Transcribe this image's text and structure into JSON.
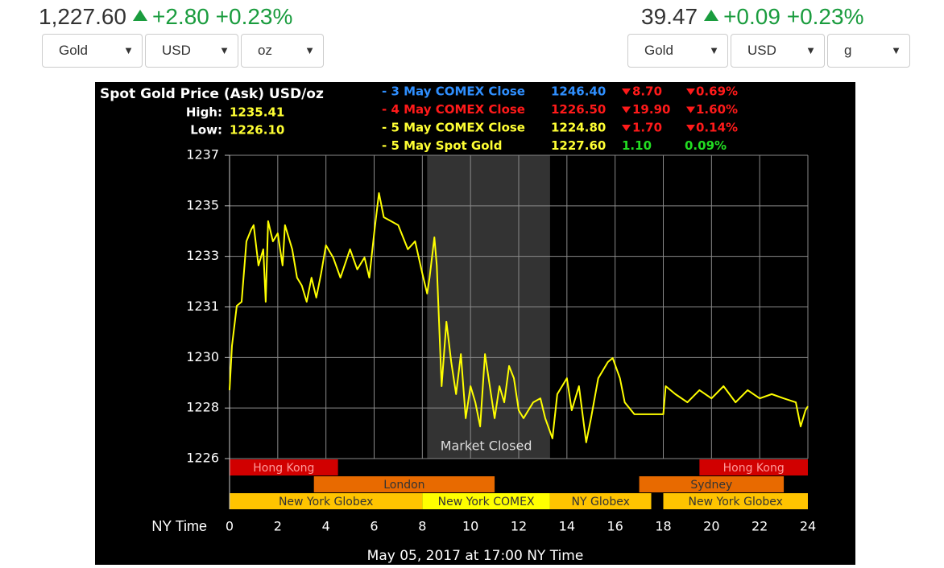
{
  "widgets": [
    {
      "price": "1,227.60",
      "change": "+2.80",
      "percent": "+0.23%",
      "selects": [
        "Gold",
        "USD",
        "oz"
      ]
    },
    {
      "price": "39.47",
      "change": "+0.09",
      "percent": "+0.23%",
      "selects": [
        "Gold",
        "USD",
        "g"
      ]
    }
  ],
  "chart_data": {
    "type": "line",
    "title": "Spot Gold Price (Ask) USD/oz",
    "high_label": "High:",
    "high": "1235.41",
    "low_label": "Low:",
    "low": "1226.10",
    "closes": [
      {
        "label": "- 3 May COMEX Close",
        "price": "1246.40",
        "change": "8.70",
        "percent": "0.69%",
        "arrow": "down",
        "label_color": "#2f8fff",
        "price_color": "#2f8fff",
        "change_color": "#ff1a1a"
      },
      {
        "label": "- 4 May COMEX Close",
        "price": "1226.50",
        "change": "19.90",
        "percent": "1.60%",
        "arrow": "down",
        "label_color": "#ff1a1a",
        "price_color": "#ff1a1a",
        "change_color": "#ff1a1a"
      },
      {
        "label": "- 5 May COMEX Close",
        "price": "1224.80",
        "change": "1.70",
        "percent": "0.14%",
        "arrow": "down",
        "label_color": "#ffff33",
        "price_color": "#ffff33",
        "change_color": "#ff1a1a"
      },
      {
        "label": "- 5 May Spot Gold",
        "price": "1227.60",
        "change": "1.10",
        "percent": "0.09%",
        "arrow": "none",
        "label_color": "#ffff33",
        "price_color": "#ffff33",
        "change_color": "#22dd22"
      }
    ],
    "x_label": "NY Time",
    "footer": "May 05, 2017 at 17:00 NY Time",
    "color": "#ffff00",
    "x": [
      0,
      0.1,
      0.3,
      0.5,
      0.7,
      0.9,
      1.0,
      1.2,
      1.4,
      1.5,
      1.6,
      1.8,
      2.0,
      2.2,
      2.3,
      2.6,
      2.8,
      3.0,
      3.2,
      3.4,
      3.6,
      3.8,
      4.0,
      4.3,
      4.6,
      5.0,
      5.3,
      5.6,
      5.8,
      6.0,
      6.2,
      6.4,
      6.7,
      7.0,
      7.4,
      7.7,
      8.0,
      8.2,
      8.3,
      8.5,
      8.6,
      8.8,
      9.0,
      9.2,
      9.4,
      9.6,
      9.8,
      10.0,
      10.2,
      10.4,
      10.6,
      10.8,
      11.0,
      11.2,
      11.4,
      11.6,
      11.8,
      12.0,
      12.2,
      12.6,
      12.9,
      13.1,
      13.4,
      13.6,
      14.0,
      14.2,
      14.5,
      14.8,
      15.0,
      15.3,
      15.7,
      15.9,
      16.2,
      16.4,
      16.8,
      17.0,
      18.0,
      18.1,
      18.5,
      19.0,
      19.5,
      20.0,
      20.5,
      21.0,
      21.5,
      22.0,
      22.5,
      23.0,
      23.5,
      23.7,
      23.9,
      24.0
    ],
    "values": [
      1228.37,
      1229.93,
      1231.34,
      1231.48,
      1233.61,
      1234.03,
      1234.18,
      1232.76,
      1233.33,
      1231.48,
      1234.32,
      1233.61,
      1233.89,
      1232.76,
      1234.18,
      1233.33,
      1232.33,
      1232.05,
      1231.48,
      1232.33,
      1231.63,
      1232.48,
      1233.47,
      1233.04,
      1232.33,
      1233.33,
      1232.62,
      1233.04,
      1232.33,
      1233.89,
      1235.31,
      1234.46,
      1234.32,
      1234.18,
      1233.33,
      1233.61,
      1232.48,
      1231.77,
      1232.33,
      1233.75,
      1232.76,
      1228.51,
      1230.78,
      1229.36,
      1228.23,
      1229.64,
      1227.38,
      1228.51,
      1227.94,
      1227.09,
      1229.64,
      1228.51,
      1227.38,
      1228.51,
      1227.94,
      1229.22,
      1228.79,
      1227.66,
      1227.38,
      1227.94,
      1228.08,
      1227.38,
      1226.67,
      1228.23,
      1228.79,
      1227.66,
      1228.51,
      1226.53,
      1227.38,
      1228.79,
      1229.36,
      1229.5,
      1228.79,
      1227.94,
      1227.52,
      1227.52,
      1227.52,
      1228.51,
      1228.23,
      1227.94,
      1228.37,
      1228.08,
      1228.51,
      1227.94,
      1228.37,
      1228.08,
      1228.23,
      1228.08,
      1227.94,
      1227.09,
      1227.66,
      1227.8
    ],
    "xlim": [
      0,
      24
    ],
    "xticks": [
      0,
      2,
      4,
      6,
      8,
      10,
      12,
      14,
      16,
      18,
      20,
      22,
      24
    ],
    "ylim": [
      1225.96,
      1236.64
    ],
    "yticks": [
      {
        "value": 1225.96,
        "label": "1226"
      },
      {
        "value": 1227.74,
        "label": "1228"
      },
      {
        "value": 1229.52,
        "label": "1230"
      },
      {
        "value": 1231.3,
        "label": "1231"
      },
      {
        "value": 1233.08,
        "label": "1233"
      },
      {
        "value": 1234.86,
        "label": "1235"
      },
      {
        "value": 1236.64,
        "label": "1237"
      }
    ],
    "grid": true,
    "market_closed": {
      "label": "Market Closed",
      "start": 8.2,
      "end": 13.3
    },
    "sessions": [
      [
        {
          "label": "Hong Kong",
          "start": 0,
          "end": 4.5,
          "color": "#d10000"
        },
        {
          "label": "Hong Kong",
          "start": 19.5,
          "end": 24,
          "color": "#d10000"
        }
      ],
      [
        {
          "label": "London",
          "start": 3.5,
          "end": 11,
          "color": "#e86a00"
        },
        {
          "label": "Sydney",
          "start": 17,
          "end": 23,
          "color": "#e86a00"
        }
      ],
      [
        {
          "label": "New York Globex",
          "start": 0,
          "end": 8,
          "color": "#ffc400"
        },
        {
          "label": "New York COMEX",
          "start": 8,
          "end": 13.3,
          "color": "#ffff00"
        },
        {
          "label": "NY Globex",
          "start": 13.3,
          "end": 17.5,
          "color": "#ffc400"
        },
        {
          "label": "New York Globex",
          "start": 18,
          "end": 24,
          "color": "#ffc400"
        }
      ]
    ]
  }
}
